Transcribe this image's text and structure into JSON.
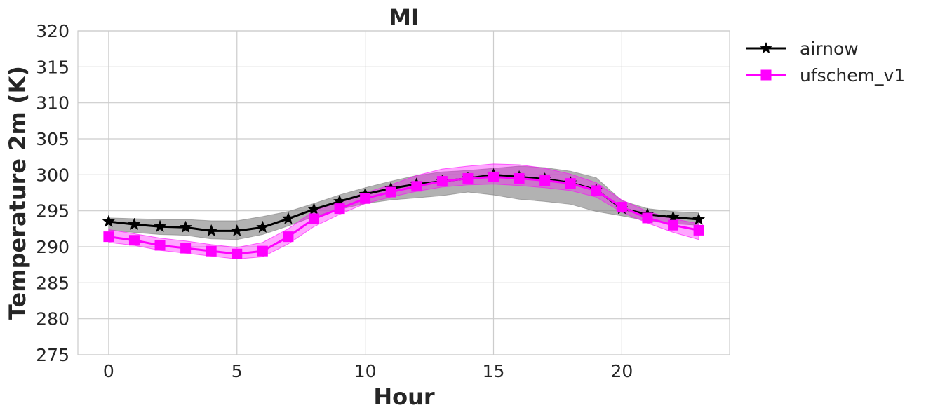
{
  "chart_data": {
    "type": "line",
    "title": "MI",
    "xlabel": "Hour",
    "ylabel": "Temperature 2m (K)",
    "xlim": [
      -1.2,
      24.2
    ],
    "ylim": [
      275,
      320
    ],
    "xticks": [
      0,
      5,
      10,
      15,
      20
    ],
    "yticks": [
      275,
      280,
      285,
      290,
      295,
      300,
      305,
      310,
      315,
      320
    ],
    "grid": true,
    "legend_position": "outside-top-right",
    "x": [
      0,
      1,
      2,
      3,
      4,
      5,
      6,
      7,
      8,
      9,
      10,
      11,
      12,
      13,
      14,
      15,
      16,
      17,
      18,
      19,
      20,
      21,
      22,
      23
    ],
    "series": [
      {
        "name": "airnow",
        "color": "#000000",
        "marker": "star-icon",
        "band_color": "#7f7f7f",
        "values": [
          293.5,
          293.1,
          292.8,
          292.7,
          292.2,
          292.2,
          292.7,
          293.9,
          295.2,
          296.3,
          297.3,
          298.1,
          298.7,
          299.1,
          299.5,
          300.0,
          299.7,
          299.4,
          298.9,
          297.9,
          295.3,
          294.5,
          294.1,
          293.8
        ],
        "lower": [
          292.3,
          292.0,
          291.7,
          291.6,
          291.1,
          291.0,
          291.7,
          292.9,
          294.2,
          295.2,
          296.0,
          296.5,
          296.8,
          297.1,
          297.6,
          297.2,
          296.6,
          296.3,
          295.9,
          294.9,
          294.3,
          293.6,
          293.2,
          293.0
        ],
        "upper": [
          294.0,
          293.9,
          293.8,
          293.8,
          293.6,
          293.6,
          294.2,
          294.9,
          296.0,
          297.2,
          298.2,
          299.1,
          299.9,
          300.4,
          300.6,
          300.9,
          301.2,
          301.0,
          300.5,
          299.6,
          296.4,
          295.3,
          294.9,
          294.7
        ]
      },
      {
        "name": "ufschem_v1",
        "color": "#ff00ff",
        "marker": "square-icon",
        "band_color": "#ff00ff",
        "values": [
          291.4,
          290.9,
          290.2,
          289.8,
          289.4,
          289.0,
          289.4,
          291.4,
          293.9,
          295.3,
          296.7,
          297.6,
          298.4,
          299.1,
          299.5,
          299.7,
          299.5,
          299.2,
          298.8,
          297.8,
          295.5,
          294.0,
          293.0,
          292.3
        ],
        "lower": [
          290.6,
          290.2,
          289.5,
          289.1,
          288.7,
          288.3,
          288.6,
          290.4,
          292.8,
          294.5,
          296.0,
          296.9,
          297.7,
          298.3,
          298.6,
          298.7,
          298.5,
          298.2,
          297.8,
          296.9,
          294.8,
          293.3,
          292.0,
          291.0
        ],
        "upper": [
          292.4,
          291.8,
          291.2,
          290.8,
          290.3,
          289.9,
          290.6,
          292.5,
          295.0,
          296.3,
          297.5,
          298.6,
          299.9,
          300.8,
          301.2,
          301.5,
          301.4,
          300.9,
          300.1,
          298.9,
          296.5,
          294.9,
          293.9,
          293.2
        ]
      }
    ]
  }
}
